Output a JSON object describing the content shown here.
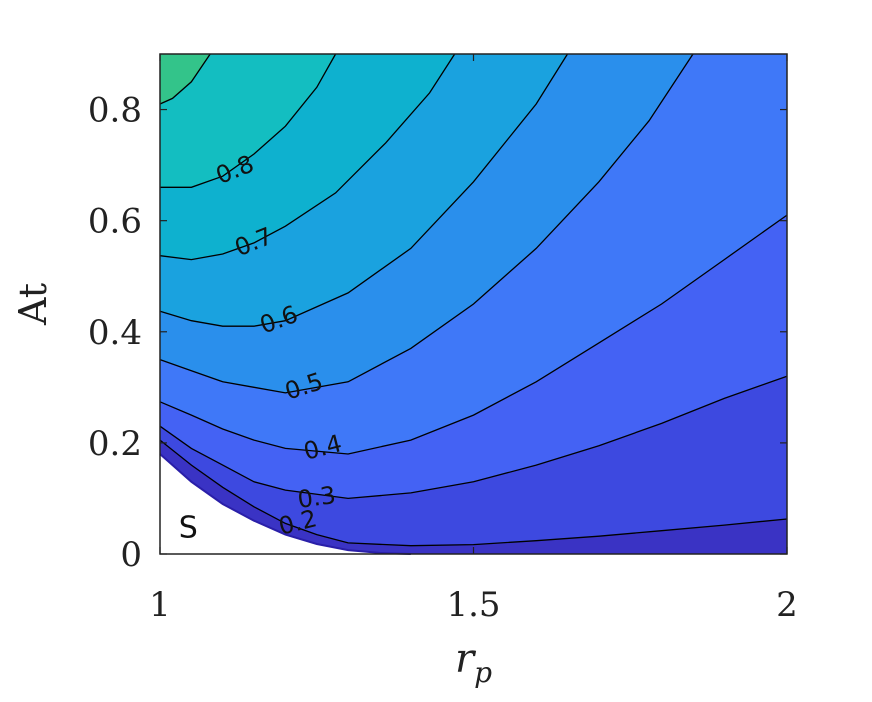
{
  "chart_data": {
    "type": "contour",
    "xlabel": "r",
    "xlabel_sub": "p",
    "ylabel": "At",
    "xlim": [
      1,
      2
    ],
    "ylim": [
      0,
      0.9
    ],
    "x_ticks": [
      {
        "value": 1,
        "label": "1"
      },
      {
        "value": 1.5,
        "label": "1.5"
      },
      {
        "value": 2,
        "label": "2"
      }
    ],
    "y_ticks": [
      {
        "value": 0,
        "label": "0"
      },
      {
        "value": 0.2,
        "label": "0.2"
      },
      {
        "value": 0.4,
        "label": "0.4"
      },
      {
        "value": 0.6,
        "label": "0.6"
      },
      {
        "value": 0.8,
        "label": "0.8"
      }
    ],
    "contour_labels": [
      {
        "text": "0.8",
        "x": 1.12,
        "y": 0.69,
        "rotate": -22
      },
      {
        "text": "0.7",
        "x": 1.15,
        "y": 0.56,
        "rotate": -22
      },
      {
        "text": "0.6",
        "x": 1.19,
        "y": 0.42,
        "rotate": -20
      },
      {
        "text": "0.5",
        "x": 1.23,
        "y": 0.3,
        "rotate": -18
      },
      {
        "text": "0.4",
        "x": 1.26,
        "y": 0.19,
        "rotate": -14
      },
      {
        "text": "0.3",
        "x": 1.25,
        "y": 0.1,
        "rotate": -8
      },
      {
        "text": "0.2",
        "x": 1.22,
        "y": 0.055,
        "rotate": -14
      }
    ],
    "region_labels": [
      {
        "text": "S",
        "x": 1.045,
        "y": 0.045
      }
    ],
    "contour_lines": [
      {
        "level": 0.9,
        "points": [
          [
            1,
            0.81
          ],
          [
            1.02,
            0.82
          ],
          [
            1.05,
            0.85
          ],
          [
            1.08,
            0.9
          ]
        ]
      },
      {
        "level": 0.8,
        "points": [
          [
            1,
            0.66
          ],
          [
            1.05,
            0.66
          ],
          [
            1.1,
            0.68
          ],
          [
            1.15,
            0.72
          ],
          [
            1.2,
            0.77
          ],
          [
            1.25,
            0.84
          ],
          [
            1.28,
            0.9
          ]
        ]
      },
      {
        "level": 0.7,
        "points": [
          [
            1,
            0.537
          ],
          [
            1.05,
            0.53
          ],
          [
            1.1,
            0.54
          ],
          [
            1.15,
            0.56
          ],
          [
            1.2,
            0.59
          ],
          [
            1.28,
            0.65
          ],
          [
            1.36,
            0.74
          ],
          [
            1.43,
            0.83
          ],
          [
            1.47,
            0.9
          ]
        ]
      },
      {
        "level": 0.6,
        "points": [
          [
            1,
            0.437
          ],
          [
            1.05,
            0.42
          ],
          [
            1.1,
            0.41
          ],
          [
            1.15,
            0.41
          ],
          [
            1.2,
            0.42
          ],
          [
            1.3,
            0.47
          ],
          [
            1.4,
            0.55
          ],
          [
            1.5,
            0.67
          ],
          [
            1.6,
            0.81
          ],
          [
            1.65,
            0.9
          ]
        ]
      },
      {
        "level": 0.5,
        "points": [
          [
            1,
            0.35
          ],
          [
            1.05,
            0.33
          ],
          [
            1.1,
            0.31
          ],
          [
            1.15,
            0.3
          ],
          [
            1.2,
            0.29
          ],
          [
            1.3,
            0.31
          ],
          [
            1.4,
            0.37
          ],
          [
            1.5,
            0.45
          ],
          [
            1.6,
            0.55
          ],
          [
            1.7,
            0.67
          ],
          [
            1.78,
            0.78
          ],
          [
            1.85,
            0.9
          ]
        ]
      },
      {
        "level": 0.4,
        "points": [
          [
            1,
            0.274
          ],
          [
            1.05,
            0.25
          ],
          [
            1.1,
            0.225
          ],
          [
            1.15,
            0.205
          ],
          [
            1.2,
            0.19
          ],
          [
            1.3,
            0.18
          ],
          [
            1.4,
            0.205
          ],
          [
            1.5,
            0.25
          ],
          [
            1.6,
            0.31
          ],
          [
            1.7,
            0.38
          ],
          [
            1.8,
            0.45
          ],
          [
            1.9,
            0.53
          ],
          [
            2,
            0.61
          ]
        ]
      },
      {
        "level": 0.3,
        "points": [
          [
            1,
            0.23
          ],
          [
            1.05,
            0.19
          ],
          [
            1.1,
            0.16
          ],
          [
            1.15,
            0.13
          ],
          [
            1.2,
            0.115
          ],
          [
            1.3,
            0.1
          ],
          [
            1.4,
            0.11
          ],
          [
            1.5,
            0.13
          ],
          [
            1.6,
            0.16
          ],
          [
            1.7,
            0.195
          ],
          [
            1.8,
            0.235
          ],
          [
            1.9,
            0.28
          ],
          [
            2,
            0.32
          ]
        ]
      },
      {
        "level": 0.2,
        "points": [
          [
            1,
            0.205
          ],
          [
            1.05,
            0.16
          ],
          [
            1.1,
            0.12
          ],
          [
            1.15,
            0.085
          ],
          [
            1.2,
            0.055
          ],
          [
            1.25,
            0.035
          ],
          [
            1.3,
            0.02
          ],
          [
            1.4,
            0.015
          ],
          [
            1.5,
            0.017
          ],
          [
            1.6,
            0.024
          ],
          [
            1.7,
            0.032
          ],
          [
            1.8,
            0.042
          ],
          [
            1.9,
            0.052
          ],
          [
            2,
            0.063
          ]
        ]
      }
    ],
    "boundary": [
      [
        1,
        0.18
      ],
      [
        1.05,
        0.13
      ],
      [
        1.1,
        0.09
      ],
      [
        1.15,
        0.06
      ],
      [
        1.2,
        0.035
      ],
      [
        1.25,
        0.018
      ],
      [
        1.3,
        0.007
      ],
      [
        1.35,
        0.002
      ],
      [
        1.4,
        0
      ]
    ],
    "colors": {
      "c1": "#33c48a",
      "c2": "#13bec1",
      "c3": "#0eb1cf",
      "c4": "#1aa2df",
      "c5": "#2a8fec",
      "c6": "#3f78f8",
      "c7": "#4462f4",
      "c8": "#3d49e0",
      "c9": "#3a33c4"
    }
  }
}
